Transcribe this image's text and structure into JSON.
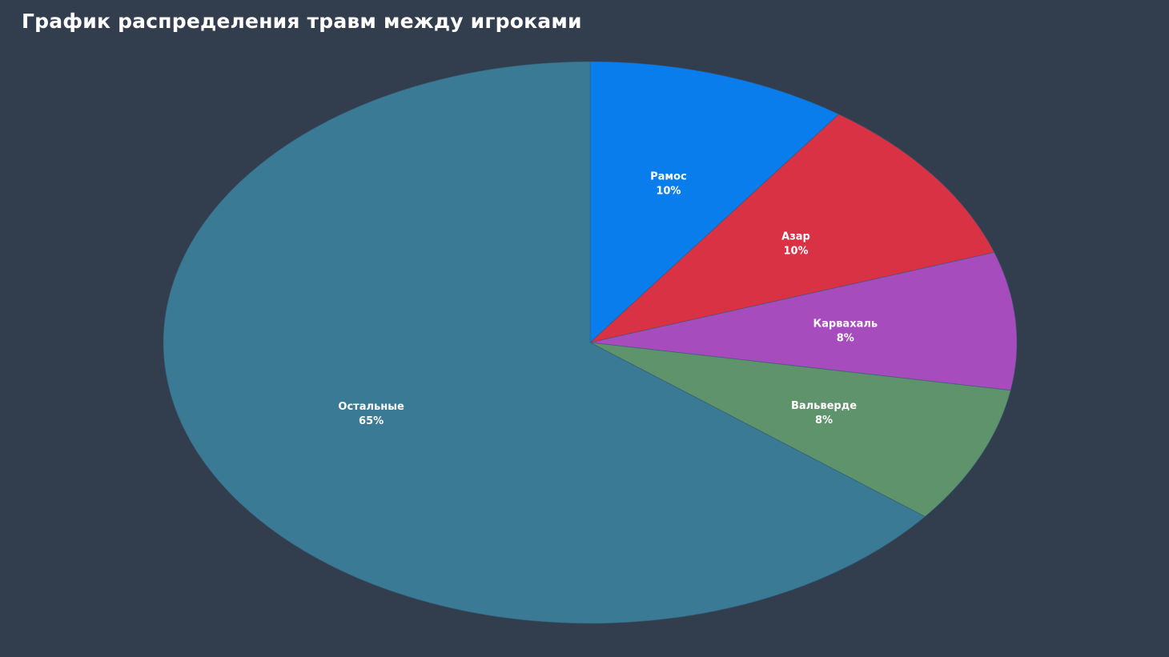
{
  "chart_data": {
    "type": "pie",
    "title": "График распределения травм между игроками",
    "slices": [
      {
        "name": "Рамос",
        "value": 10,
        "value_label": "10%",
        "color": "#0a7ded"
      },
      {
        "name": "Азар",
        "value": 10,
        "value_label": "10%",
        "color": "#d93244"
      },
      {
        "name": "Карвахаль",
        "value": 8,
        "value_label": "8%",
        "color": "#a64cbd"
      },
      {
        "name": "Вальверде",
        "value": 8,
        "value_label": "8%",
        "color": "#5e936c"
      },
      {
        "name": "Остальные",
        "value": 65,
        "value_label": "65%",
        "color": "#3a7a95"
      }
    ],
    "background": "#323d4e",
    "legend": "none"
  }
}
